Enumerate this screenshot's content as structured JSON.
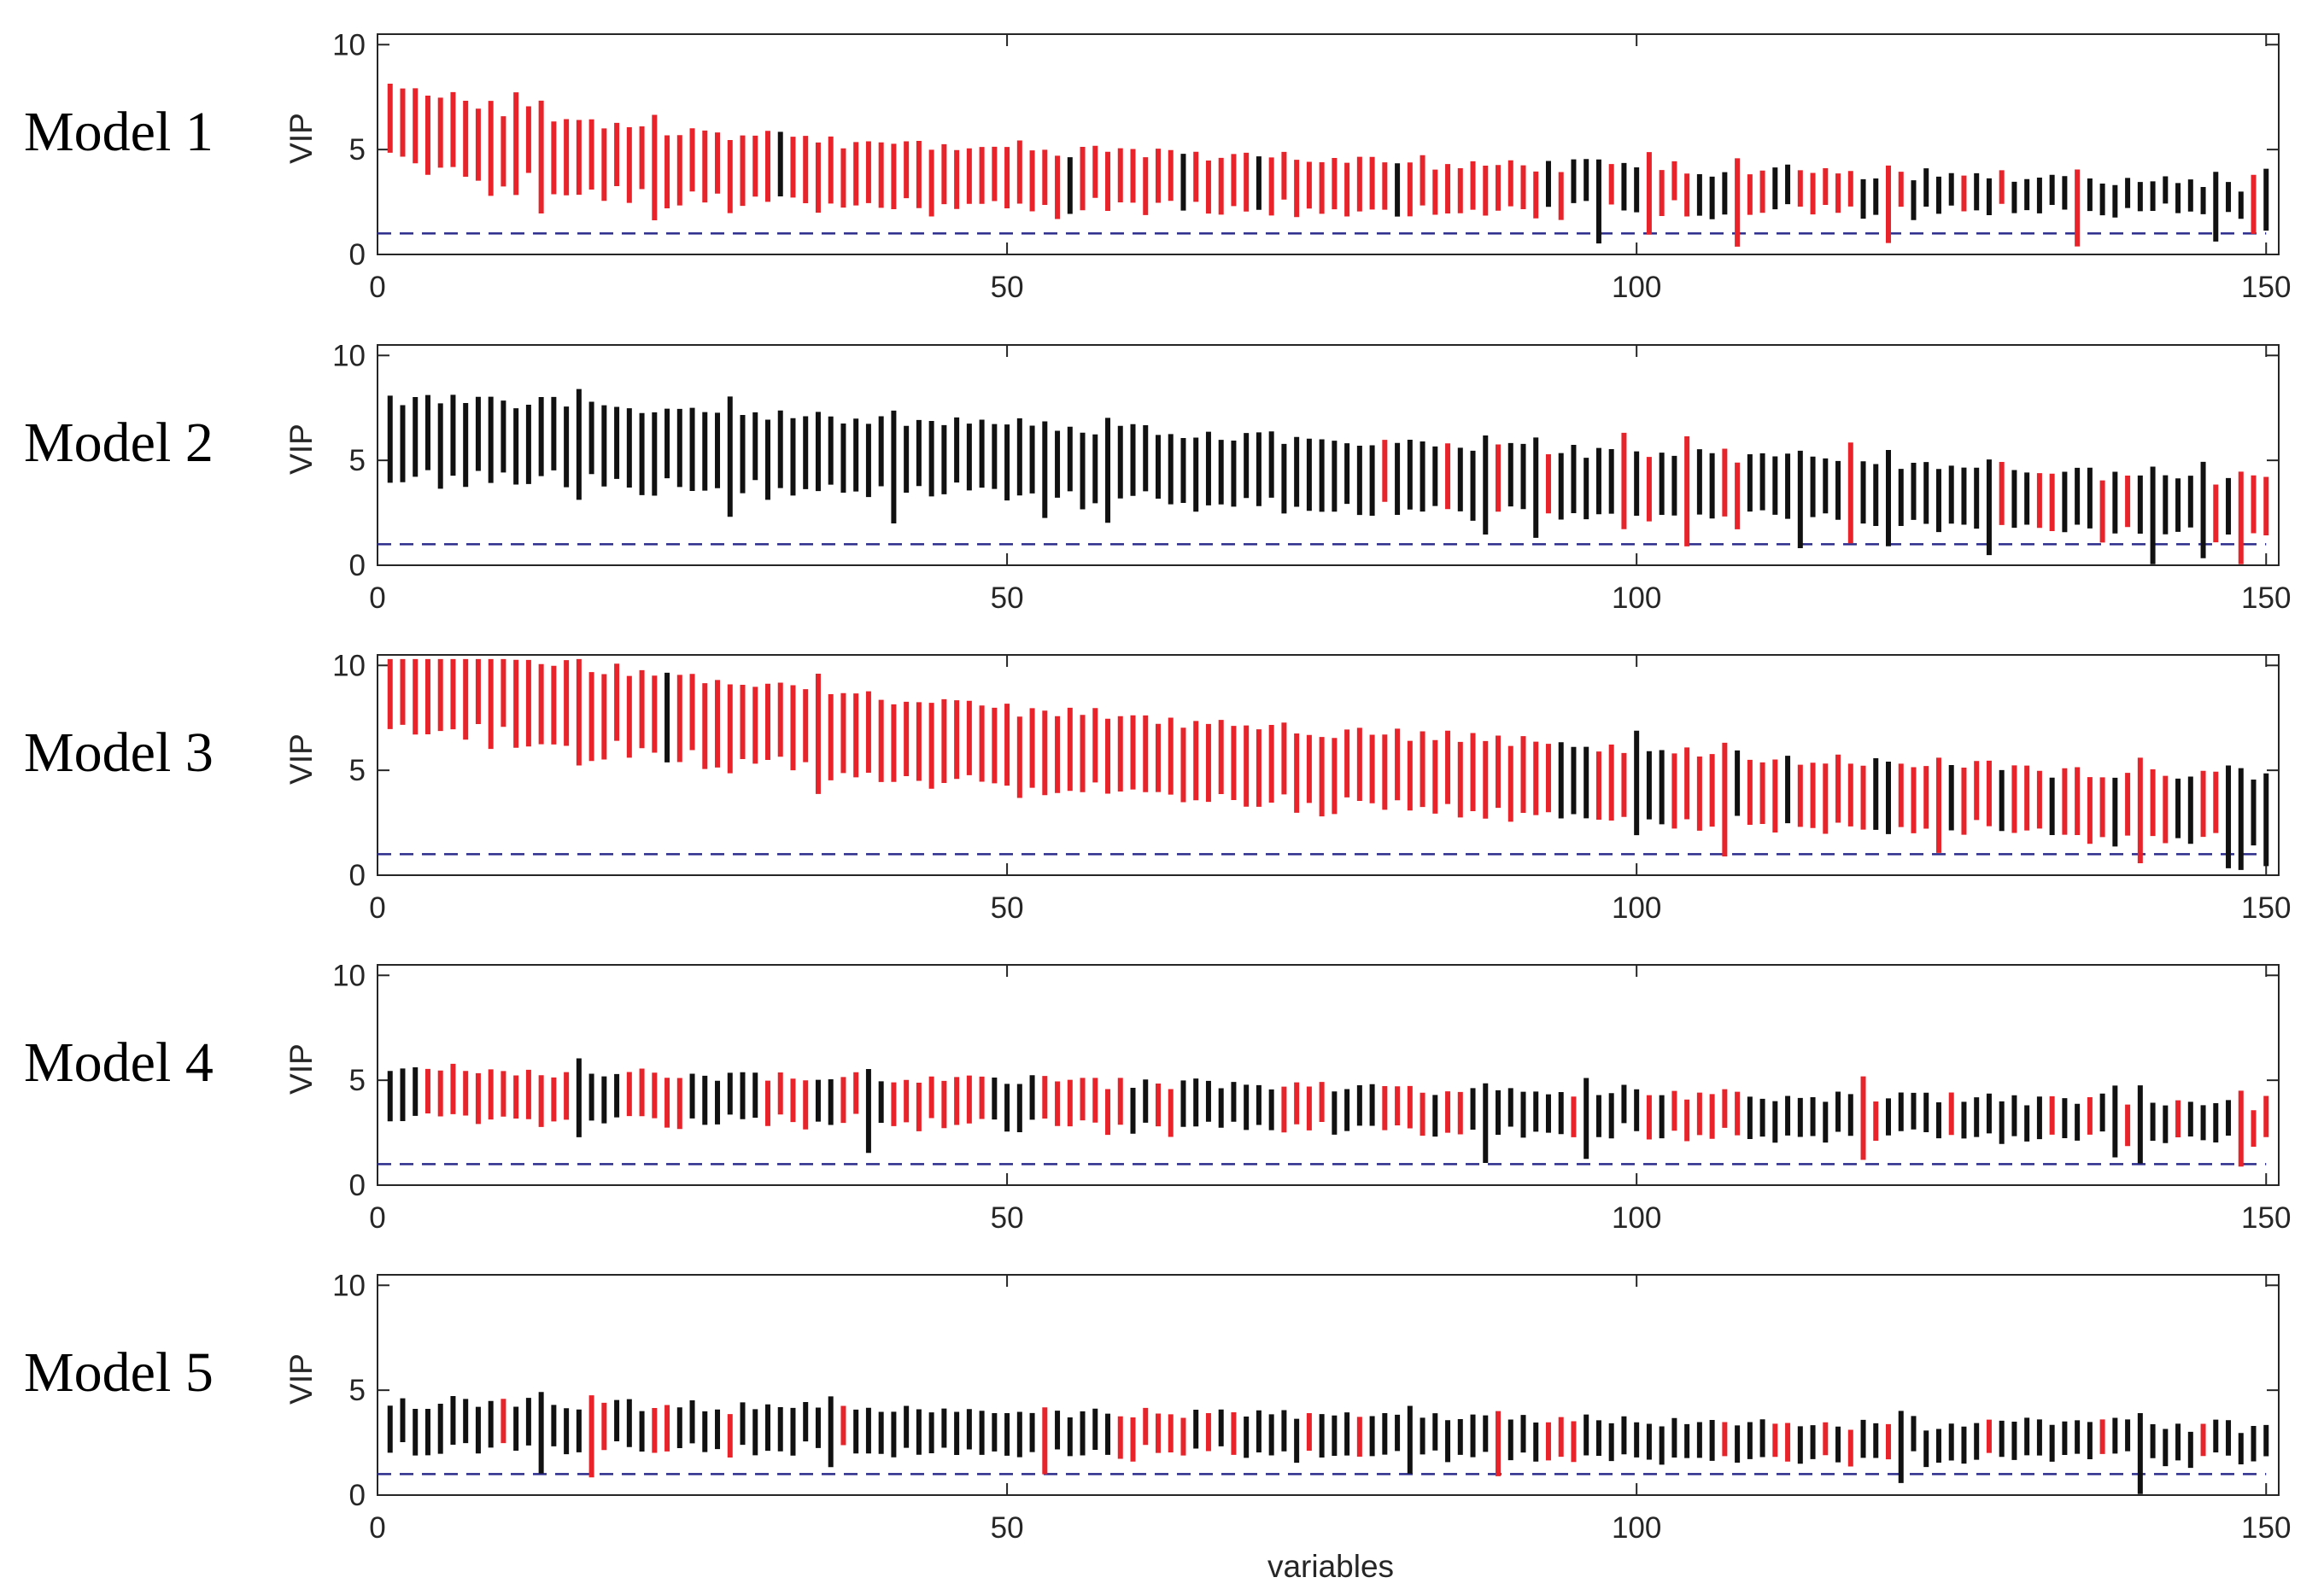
{
  "chart_data": {
    "type": "interval",
    "title": "",
    "xlabel": "variables",
    "ylabel": "VIP",
    "xlim": [
      0,
      151
    ],
    "ylim": [
      0,
      10.5
    ],
    "xticks": [
      0,
      50,
      100,
      150
    ],
    "yticks": [
      0,
      5,
      10
    ],
    "threshold": 1,
    "colors": {
      "significant": "#e8232a",
      "not_significant": "#111111",
      "threshold": "#2b2b8c"
    },
    "legend": "none",
    "panels": [
      {
        "label": "Model 1",
        "start": 7.3,
        "start_decay": 0.07,
        "end": 2.5,
        "width_start": 3.6,
        "width_end": 1.3,
        "red_segments": [
          [
            1,
            31
          ],
          [
            33,
            54
          ],
          [
            56,
            63
          ],
          [
            65,
            69
          ],
          [
            71,
            80
          ],
          [
            82,
            92
          ],
          [
            94,
            94
          ],
          [
            98,
            98
          ],
          [
            101,
            104
          ],
          [
            108,
            110
          ],
          [
            113,
            117
          ],
          [
            120,
            121
          ],
          [
            126,
            126
          ],
          [
            129,
            129
          ],
          [
            135,
            135
          ],
          [
            149,
            149
          ]
        ],
        "tails": [
          9,
          11,
          13,
          22,
          97,
          101,
          108,
          120,
          135,
          146,
          149,
          150
        ]
      },
      {
        "label": "Model 2",
        "start": 6.9,
        "start_decay": 0.0,
        "end": 3.1,
        "width_start": 3.8,
        "width_end": 2.6,
        "red_segments": [
          [
            80,
            80
          ],
          [
            85,
            85
          ],
          [
            89,
            89
          ],
          [
            93,
            93
          ],
          [
            99,
            99
          ],
          [
            101,
            101
          ],
          [
            104,
            104
          ],
          [
            107,
            108
          ],
          [
            117,
            117
          ],
          [
            129,
            129
          ],
          [
            132,
            133
          ],
          [
            137,
            137
          ],
          [
            139,
            139
          ],
          [
            146,
            146
          ],
          [
            148,
            150
          ]
        ],
        "tails": [
          16,
          28,
          41,
          53,
          58,
          88,
          92,
          99,
          104,
          113,
          117,
          120,
          128,
          141,
          145,
          148
        ]
      },
      {
        "label": "Model 3",
        "start": 10.2,
        "start_decay": 0.02,
        "end": 3.4,
        "width_start": 4.1,
        "width_end": 2.9,
        "red_segments": [
          [
            1,
            22
          ],
          [
            24,
            93
          ],
          [
            97,
            99
          ],
          [
            103,
            107
          ],
          [
            109,
            111
          ],
          [
            113,
            118
          ],
          [
            121,
            124
          ],
          [
            126,
            128
          ],
          [
            130,
            132
          ],
          [
            134,
            137
          ],
          [
            139,
            142
          ],
          [
            145,
            146
          ]
        ],
        "tails": [
          16,
          35,
          100,
          107,
          124,
          140,
          147,
          148,
          150
        ]
      },
      {
        "label": "Model 4",
        "start": 4.6,
        "start_decay": 0.0,
        "end": 3.0,
        "width_start": 2.3,
        "width_end": 1.8,
        "red_segments": [
          [
            4,
            15
          ],
          [
            20,
            24
          ],
          [
            31,
            34
          ],
          [
            37,
            38
          ],
          [
            41,
            48
          ],
          [
            53,
            59
          ],
          [
            62,
            63
          ],
          [
            72,
            75
          ],
          [
            80,
            83
          ],
          [
            85,
            86
          ],
          [
            95,
            95
          ],
          [
            101,
            101
          ],
          [
            103,
            108
          ],
          [
            118,
            119
          ],
          [
            125,
            125
          ],
          [
            133,
            133
          ],
          [
            136,
            136
          ],
          [
            139,
            139
          ],
          [
            143,
            143
          ],
          [
            148,
            150
          ]
        ],
        "tails": [
          16,
          39,
          88,
          96,
          118,
          138,
          140,
          148
        ]
      },
      {
        "label": "Model 5",
        "start": 3.5,
        "start_decay": 0.0,
        "end": 2.4,
        "width_start": 2.2,
        "width_end": 1.6,
        "red_segments": [
          [
            10,
            10
          ],
          [
            17,
            18
          ],
          [
            22,
            23
          ],
          [
            28,
            28
          ],
          [
            37,
            37
          ],
          [
            53,
            53
          ],
          [
            59,
            64
          ],
          [
            66,
            66
          ],
          [
            68,
            68
          ],
          [
            74,
            74
          ],
          [
            78,
            78
          ],
          [
            89,
            89
          ],
          [
            93,
            95
          ],
          [
            107,
            107
          ],
          [
            111,
            112
          ],
          [
            115,
            115
          ],
          [
            117,
            117
          ],
          [
            120,
            120
          ],
          [
            128,
            128
          ],
          [
            137,
            137
          ],
          [
            145,
            145
          ]
        ],
        "tails": [
          13,
          17,
          36,
          53,
          82,
          89,
          121,
          140
        ]
      }
    ]
  }
}
